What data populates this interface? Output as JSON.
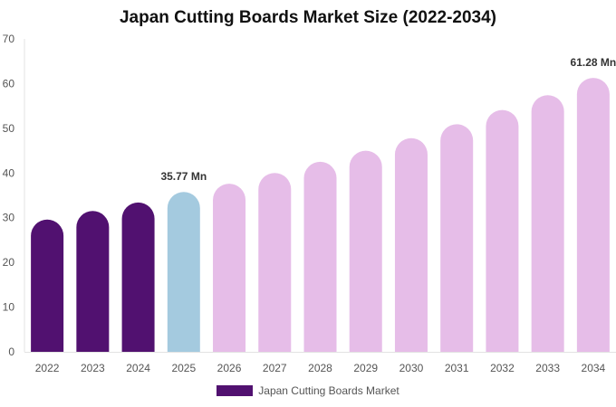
{
  "chart_data": {
    "type": "bar",
    "title": "Japan Cutting Boards Market Size (2022-2034)",
    "xlabel": "",
    "ylabel": "",
    "categories": [
      "2022",
      "2023",
      "2024",
      "2025",
      "2026",
      "2027",
      "2028",
      "2029",
      "2030",
      "2031",
      "2032",
      "2033",
      "2034"
    ],
    "series": [
      {
        "name": "Japan Cutting Boards Market",
        "values": [
          29.6,
          31.5,
          33.4,
          35.77,
          37.6,
          40.0,
          42.5,
          45.0,
          47.8,
          50.9,
          54.1,
          57.4,
          61.28
        ]
      }
    ],
    "bar_colors": [
      "#511170",
      "#511170",
      "#511170",
      "#a4cadf",
      "#e6bde8",
      "#e6bde8",
      "#e6bde8",
      "#e6bde8",
      "#e6bde8",
      "#e6bde8",
      "#e6bde8",
      "#e6bde8",
      "#e6bde8"
    ],
    "data_labels": [
      {
        "category": "2025",
        "text": "35.77 Mn"
      },
      {
        "category": "2034",
        "text": "61.28 Mn"
      }
    ],
    "ylim": [
      0,
      70
    ],
    "yticks": [
      0,
      10,
      20,
      30,
      40,
      50,
      60,
      70
    ],
    "grid": false,
    "legend_position": "bottom-center",
    "legend_color": "#511170"
  }
}
